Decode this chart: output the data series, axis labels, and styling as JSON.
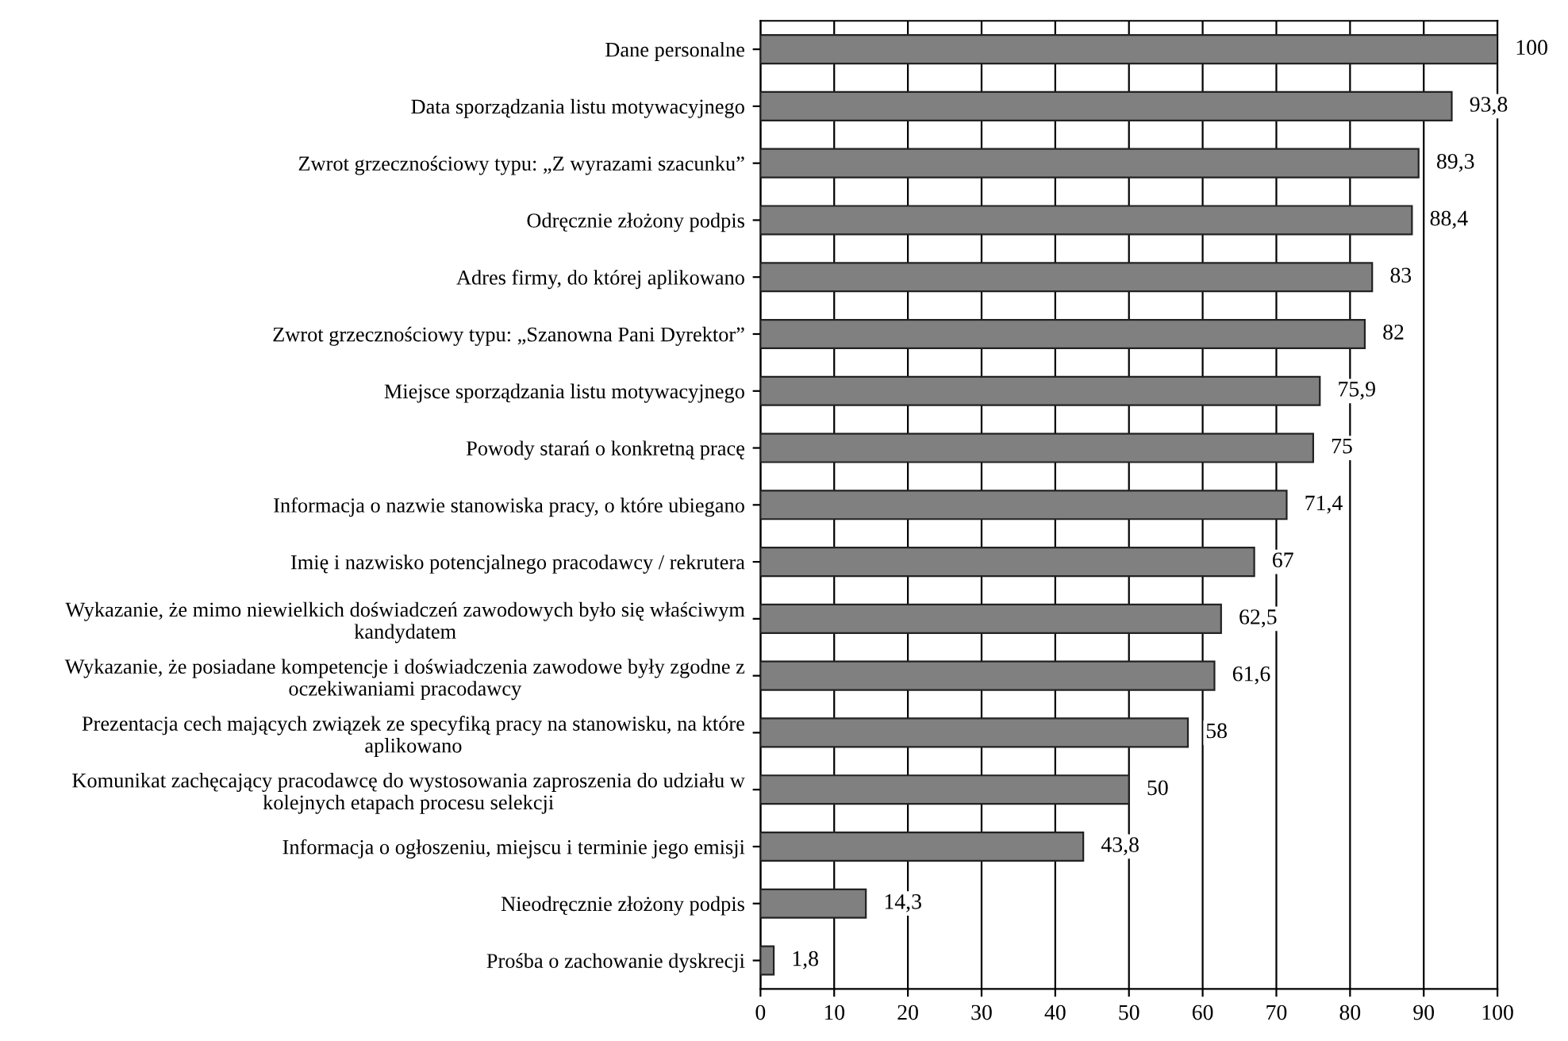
{
  "chart_data": {
    "type": "bar",
    "orientation": "horizontal",
    "categories": [
      "Dane personalne",
      "Data sporządzania listu motywacyjnego",
      "Zwrot grzecznościowy typu: „Z wyrazami szacunku”",
      "Odręcznie złożony podpis",
      "Adres firmy, do której aplikowano",
      "Zwrot grzecznościowy typu: „Szanowna Pani Dyrektor”",
      "Miejsce sporządzania listu motywacyjnego",
      "Powody starań o konkretną pracę",
      "Informacja o nazwie stanowiska pracy, o które ubiegano",
      "Imię i nazwisko potencjalnego pracodawcy / rekrutera",
      "Wykazanie, że mimo niewielkich doświadczeń zawodowych było się właściwym\nkandydatem",
      "Wykazanie, że posiadane kompetencje i doświadczenia zawodowe były zgodne z\noczekiwaniami pracodawcy",
      "Prezentacja cech mających związek ze specyfiką pracy na stanowisku, na które\naplikowano",
      "Komunikat zachęcający pracodawcę do wystosowania zaproszenia do udziału w\nkolejnych etapach procesu selekcji",
      "Informacja o ogłoszeniu, miejscu i terminie jego emisji",
      "Nieodręcznie złożony podpis",
      "Prośba o zachowanie dyskrecji"
    ],
    "values": [
      100,
      93.8,
      89.3,
      88.4,
      83,
      82,
      75.9,
      75,
      71.4,
      67,
      62.5,
      61.6,
      58,
      50,
      43.8,
      14.3,
      1.8
    ],
    "value_labels": [
      "100",
      "93,8",
      "89,3",
      "88,4",
      "83",
      "82",
      "75,9",
      "75",
      "71,4",
      "67",
      "62,5",
      "61,6",
      "58",
      "50",
      "43,8",
      "14,3",
      "1,8"
    ],
    "color": "#808080",
    "xlim": [
      0,
      100
    ],
    "xticks": [
      0,
      10,
      20,
      30,
      40,
      50,
      60,
      70,
      80,
      90,
      100
    ],
    "grid": "x",
    "legend": false
  }
}
